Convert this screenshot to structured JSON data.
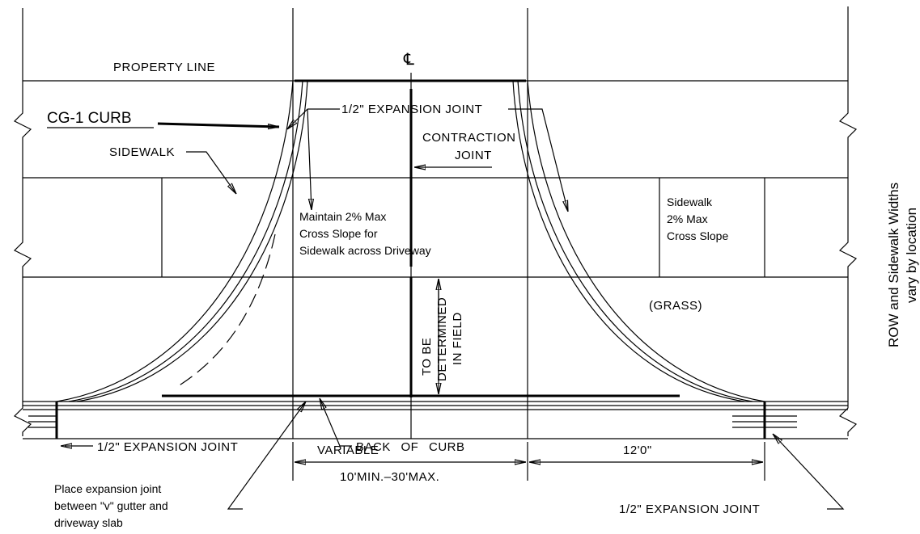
{
  "labels": {
    "property_line": "PROPERTY LINE",
    "centerline": "℄",
    "curb": "CG-1 CURB",
    "top_expansion_joint": "1/2\" EXPANSION JOINT",
    "contraction_joint": [
      "CONTRACTION",
      "JOINT"
    ],
    "sidewalk": "SIDEWALK",
    "driveway_slope": [
      "Maintain 2% Max",
      "Cross Slope for",
      "Sidewalk across Driveway"
    ],
    "sidewalk_slope": [
      "Sidewalk",
      "2% Max",
      "Cross Slope"
    ],
    "grass": "(GRASS)",
    "field": [
      "TO BE",
      "DETERMINED",
      "IN FIELD"
    ],
    "left_expansion_joint": "1/2\" EXPANSION JOINT",
    "back_of_curb": "BACK OF CURB",
    "variable": "VARIABLE",
    "driveway_width": "10'MIN.–30'MAX.",
    "flare_width": "12'0\"",
    "gutter_note": [
      "Place expansion joint",
      "between \"v\" gutter and",
      "driveway slab"
    ],
    "right_expansion_joint": "1/2\" EXPANSION JOINT",
    "row_note": [
      "ROW and Sidewalk Widths",
      "vary by location"
    ]
  }
}
